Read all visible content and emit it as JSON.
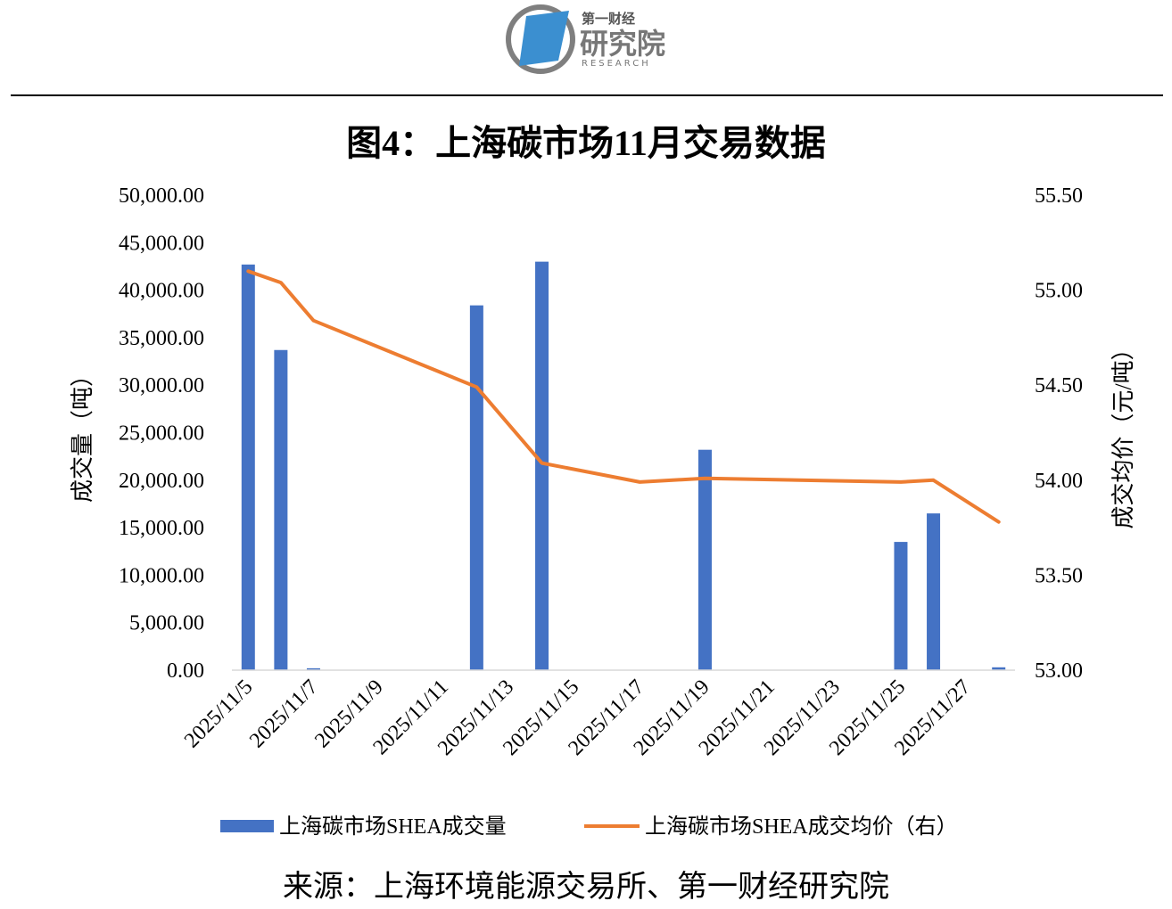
{
  "logo": {
    "brand_top": "第一财经",
    "brand_main": "研究院",
    "brand_en": "RESEARCH"
  },
  "chart_data": {
    "type": "bar+line",
    "title": "图4：上海碳市场11月交易数据",
    "x_dates": [
      "2025/11/5",
      "2025/11/6",
      "2025/11/7",
      "2025/11/8",
      "2025/11/9",
      "2025/11/10",
      "2025/11/11",
      "2025/11/12",
      "2025/11/13",
      "2025/11/14",
      "2025/11/15",
      "2025/11/16",
      "2025/11/17",
      "2025/11/18",
      "2025/11/19",
      "2025/11/20",
      "2025/11/21",
      "2025/11/22",
      "2025/11/23",
      "2025/11/24",
      "2025/11/25",
      "2025/11/26",
      "2025/11/27",
      "2025/11/28"
    ],
    "x_tick_labels": [
      "2025/11/5",
      "2025/11/7",
      "2025/11/9",
      "2025/11/11",
      "2025/11/13",
      "2025/11/15",
      "2025/11/17",
      "2025/11/19",
      "2025/11/21",
      "2025/11/23",
      "2025/11/25",
      "2025/11/27"
    ],
    "ylabel_left": "成交量（吨）",
    "ylabel_right": "成交均价（元/吨）",
    "left_ticks": [
      "0.00",
      "5,000.00",
      "10,000.00",
      "15,000.00",
      "20,000.00",
      "25,000.00",
      "30,000.00",
      "35,000.00",
      "40,000.00",
      "45,000.00",
      "50,000.00"
    ],
    "right_ticks": [
      "53.00",
      "53.50",
      "54.00",
      "54.50",
      "55.00",
      "55.50"
    ],
    "ylim_left": [
      0,
      50000
    ],
    "ylim_right": [
      53.0,
      55.5
    ],
    "grid": false,
    "legend_position": "bottom",
    "series": [
      {
        "name": "上海碳市场SHEA成交量",
        "axis": "left",
        "kind": "bar",
        "color": "#4472C4",
        "points": [
          {
            "x": "2025/11/5",
            "y": 42700
          },
          {
            "x": "2025/11/6",
            "y": 33700
          },
          {
            "x": "2025/11/7",
            "y": 200
          },
          {
            "x": "2025/11/12",
            "y": 38400
          },
          {
            "x": "2025/11/14",
            "y": 43000
          },
          {
            "x": "2025/11/19",
            "y": 23200
          },
          {
            "x": "2025/11/25",
            "y": 13500
          },
          {
            "x": "2025/11/26",
            "y": 16500
          },
          {
            "x": "2025/11/28",
            "y": 300
          }
        ]
      },
      {
        "name": "上海碳市场SHEA成交均价（右）",
        "axis": "right",
        "kind": "line",
        "color": "#ED7D31",
        "points": [
          {
            "x": "2025/11/5",
            "y": 55.1
          },
          {
            "x": "2025/11/6",
            "y": 55.04
          },
          {
            "x": "2025/11/7",
            "y": 54.84
          },
          {
            "x": "2025/11/12",
            "y": 54.49
          },
          {
            "x": "2025/11/14",
            "y": 54.09
          },
          {
            "x": "2025/11/17",
            "y": 53.99
          },
          {
            "x": "2025/11/19",
            "y": 54.01
          },
          {
            "x": "2025/11/25",
            "y": 53.99
          },
          {
            "x": "2025/11/26",
            "y": 54.0
          },
          {
            "x": "2025/11/28",
            "y": 53.78
          }
        ]
      }
    ]
  },
  "footer": {
    "source": "来源：上海环境能源交易所、第一财经研究院"
  }
}
